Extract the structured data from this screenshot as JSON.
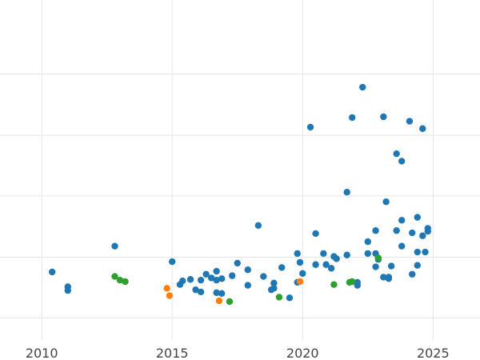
{
  "chart_data": {
    "type": "scatter",
    "title": "",
    "xlabel": "",
    "ylabel": "",
    "xlim": [
      2008.4,
      2026.8
    ],
    "ylim": [
      0,
      460
    ],
    "grid": true,
    "legend": "none",
    "x_ticks": [
      {
        "value": 2010,
        "label": "2010"
      },
      {
        "value": 2015,
        "label": "2015"
      },
      {
        "value": 2020,
        "label": "2020"
      },
      {
        "value": 2025,
        "label": "2025"
      }
    ],
    "y_gridlines": [
      30,
      112,
      195,
      277,
      360
    ],
    "series": [
      {
        "color": "#1f77b4",
        "points": [
          [
            2010.4,
            92
          ],
          [
            2011.0,
            72
          ],
          [
            2011.0,
            67
          ],
          [
            2012.8,
            127
          ],
          [
            2015.0,
            106
          ],
          [
            2015.3,
            75
          ],
          [
            2015.4,
            80
          ],
          [
            2015.7,
            82
          ],
          [
            2015.9,
            68
          ],
          [
            2016.1,
            81
          ],
          [
            2016.1,
            65
          ],
          [
            2016.3,
            89
          ],
          [
            2016.5,
            84
          ],
          [
            2016.7,
            93
          ],
          [
            2016.7,
            81
          ],
          [
            2016.7,
            64
          ],
          [
            2016.9,
            63
          ],
          [
            2016.9,
            83
          ],
          [
            2017.3,
            87
          ],
          [
            2017.5,
            104
          ],
          [
            2017.9,
            95
          ],
          [
            2017.9,
            74
          ],
          [
            2018.3,
            155
          ],
          [
            2018.5,
            86
          ],
          [
            2018.8,
            68
          ],
          [
            2018.9,
            70
          ],
          [
            2018.9,
            77
          ],
          [
            2019.2,
            98
          ],
          [
            2019.5,
            57
          ],
          [
            2019.8,
            117
          ],
          [
            2019.8,
            78
          ],
          [
            2019.9,
            105
          ],
          [
            2020.0,
            90
          ],
          [
            2020.3,
            288
          ],
          [
            2020.5,
            102
          ],
          [
            2020.5,
            144
          ],
          [
            2020.8,
            117
          ],
          [
            2020.9,
            102
          ],
          [
            2021.1,
            97
          ],
          [
            2021.2,
            113
          ],
          [
            2021.3,
            110
          ],
          [
            2021.7,
            115
          ],
          [
            2021.7,
            200
          ],
          [
            2021.9,
            301
          ],
          [
            2022.1,
            74
          ],
          [
            2022.1,
            78
          ],
          [
            2022.3,
            342
          ],
          [
            2022.5,
            133
          ],
          [
            2022.5,
            117
          ],
          [
            2022.8,
            117
          ],
          [
            2022.8,
            148
          ],
          [
            2022.8,
            99
          ],
          [
            2022.9,
            109
          ],
          [
            2023.1,
            85
          ],
          [
            2023.1,
            302
          ],
          [
            2023.2,
            187
          ],
          [
            2023.3,
            83
          ],
          [
            2023.3,
            85
          ],
          [
            2023.4,
            100
          ],
          [
            2023.6,
            148
          ],
          [
            2023.6,
            252
          ],
          [
            2023.8,
            242
          ],
          [
            2023.8,
            162
          ],
          [
            2023.8,
            127
          ],
          [
            2024.1,
            296
          ],
          [
            2024.2,
            145
          ],
          [
            2024.2,
            89
          ],
          [
            2024.4,
            101
          ],
          [
            2024.4,
            166
          ],
          [
            2024.4,
            119
          ],
          [
            2024.6,
            286
          ],
          [
            2024.6,
            141
          ],
          [
            2024.7,
            119
          ],
          [
            2024.8,
            147
          ],
          [
            2024.8,
            151
          ]
        ]
      },
      {
        "color": "#ff7f0e",
        "points": [
          [
            2014.8,
            70
          ],
          [
            2014.9,
            60
          ],
          [
            2016.8,
            53
          ],
          [
            2019.9,
            79
          ]
        ]
      },
      {
        "color": "#2ca02c",
        "points": [
          [
            2012.8,
            86
          ],
          [
            2013.0,
            81
          ],
          [
            2013.2,
            79
          ],
          [
            2017.2,
            52
          ],
          [
            2019.1,
            58
          ],
          [
            2021.2,
            75
          ],
          [
            2021.8,
            78
          ],
          [
            2021.9,
            79
          ],
          [
            2022.9,
            111
          ]
        ]
      }
    ]
  }
}
